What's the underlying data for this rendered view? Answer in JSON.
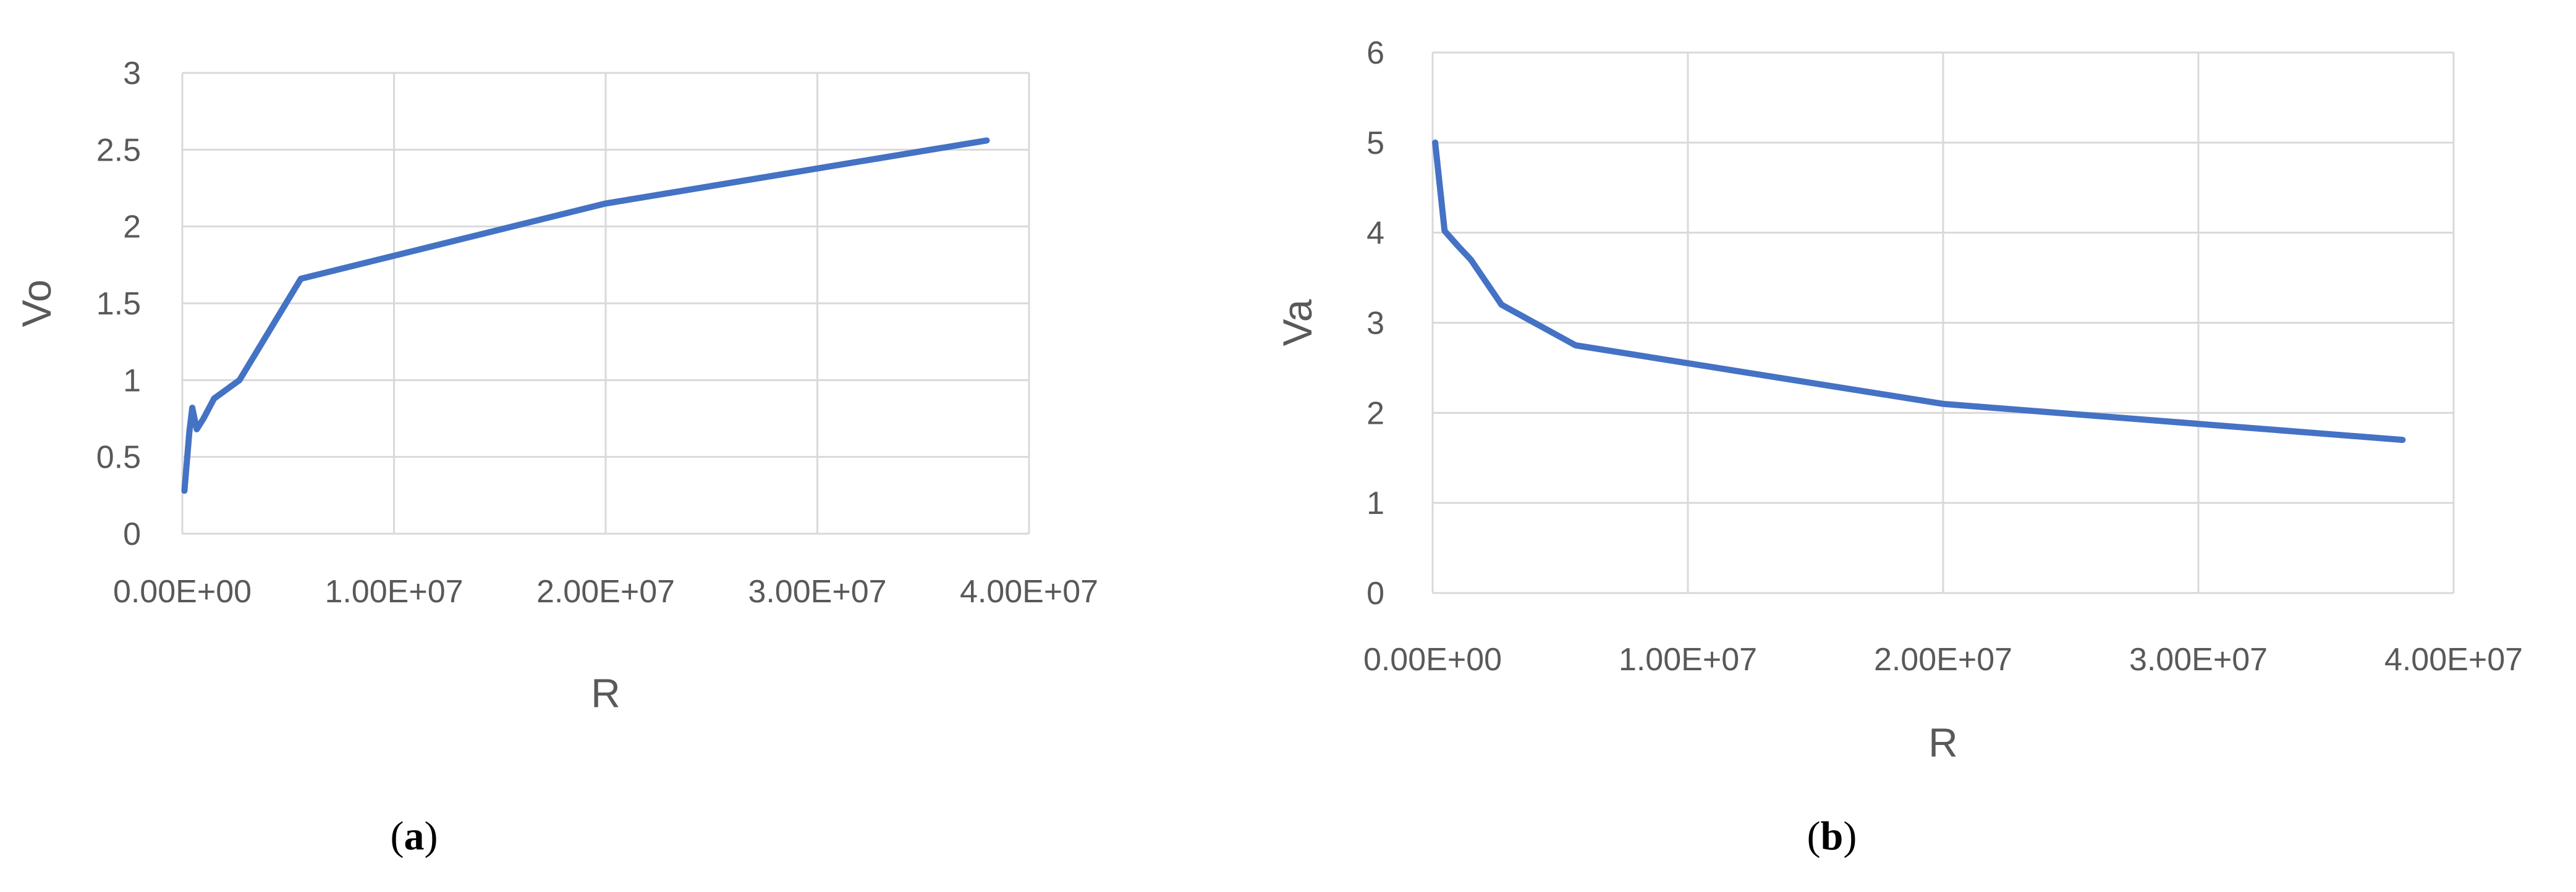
{
  "colors": {
    "series": "#4472c4",
    "grid": "#d9d9d9",
    "text": "#595959"
  },
  "chart_data": [
    {
      "type": "line",
      "panel_label": "a",
      "xlabel": "R",
      "ylabel": "Vo",
      "xlim": [
        0,
        40000000
      ],
      "ylim": [
        0,
        3
      ],
      "x_ticks": [
        0,
        10000000,
        20000000,
        30000000,
        40000000
      ],
      "x_tick_labels": [
        "0.00E+00",
        "1.00E+07",
        "2.00E+07",
        "3.00E+07",
        "4.00E+07"
      ],
      "y_ticks": [
        0,
        0.5,
        1,
        1.5,
        2,
        2.5,
        3
      ],
      "y_tick_labels": [
        "0",
        "0.5",
        "1",
        "1.5",
        "2",
        "2.5",
        "3"
      ],
      "grid": true,
      "legend": "none",
      "series": [
        {
          "x": [
            100000,
            330000,
            470000,
            680000,
            1000000,
            1500000,
            2700000,
            5600000,
            20000000,
            38000000
          ],
          "y": [
            0.28,
            0.66,
            0.82,
            0.68,
            0.75,
            0.88,
            1.0,
            1.66,
            2.15,
            2.56
          ]
        }
      ]
    },
    {
      "type": "line",
      "panel_label": "b",
      "xlabel": "R",
      "ylabel": "Va",
      "xlim": [
        0,
        40000000
      ],
      "ylim": [
        0,
        6
      ],
      "x_ticks": [
        0,
        10000000,
        20000000,
        30000000,
        40000000
      ],
      "x_tick_labels": [
        "0.00E+00",
        "1.00E+07",
        "2.00E+07",
        "3.00E+07",
        "4.00E+07"
      ],
      "y_ticks": [
        0,
        1,
        2,
        3,
        4,
        5,
        6
      ],
      "y_tick_labels": [
        "0",
        "1",
        "2",
        "3",
        "4",
        "5",
        "6"
      ],
      "grid": true,
      "legend": "none",
      "series": [
        {
          "x": [
            100000,
            470000,
            1000000,
            1500000,
            2700000,
            5600000,
            20000000,
            38000000
          ],
          "y": [
            5.0,
            4.02,
            3.85,
            3.7,
            3.2,
            2.75,
            2.1,
            1.7
          ]
        }
      ]
    }
  ]
}
